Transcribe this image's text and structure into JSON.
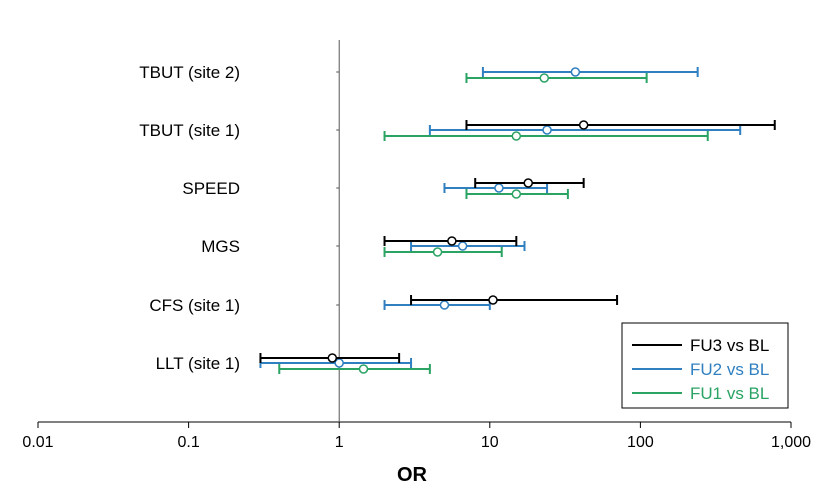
{
  "chart_data": {
    "type": "forest",
    "xlabel": "OR",
    "x_scale": "log",
    "xlim": [
      0.01,
      1000
    ],
    "x_ticks": [
      {
        "value": 0.01,
        "label": "0.01"
      },
      {
        "value": 0.1,
        "label": "0.1"
      },
      {
        "value": 1,
        "label": "1"
      },
      {
        "value": 10,
        "label": "10"
      },
      {
        "value": 100,
        "label": "100"
      },
      {
        "value": 1000,
        "label": "1,000"
      }
    ],
    "reference_line": 1,
    "grid": false,
    "legend_position": "bottom-right",
    "categories": [
      "TBUT (site 2)",
      "TBUT (site 1)",
      "SPEED",
      "MGS",
      "CFS (site 1)",
      "LLT (site 1)"
    ],
    "series": [
      {
        "name": "FU3 vs BL",
        "color": "#000000",
        "points": [
          null,
          {
            "or": 42,
            "low": 7,
            "high": 780
          },
          {
            "or": 18,
            "low": 8,
            "high": 42
          },
          {
            "or": 5.6,
            "low": 2,
            "high": 15
          },
          {
            "or": 10.5,
            "low": 3,
            "high": 70
          },
          {
            "or": 0.9,
            "low": 0.3,
            "high": 2.5
          }
        ]
      },
      {
        "name": "FU2 vs BL",
        "color": "#2f7fc1",
        "points": [
          {
            "or": 37,
            "low": 9,
            "high": 240
          },
          {
            "or": 24,
            "low": 4,
            "high": 460
          },
          {
            "or": 11.5,
            "low": 5,
            "high": 24
          },
          {
            "or": 6.6,
            "low": 3,
            "high": 17
          },
          {
            "or": 5,
            "low": 2,
            "high": 10
          },
          {
            "or": 1,
            "low": 0.3,
            "high": 3
          }
        ]
      },
      {
        "name": "FU1 vs BL",
        "color": "#2aa363",
        "points": [
          {
            "or": 23,
            "low": 7,
            "high": 110
          },
          {
            "or": 15,
            "low": 2,
            "high": 280
          },
          {
            "or": 15,
            "low": 7,
            "high": 33
          },
          {
            "or": 4.5,
            "low": 2,
            "high": 12
          },
          null,
          {
            "or": 1.45,
            "low": 0.4,
            "high": 4
          }
        ]
      }
    ]
  }
}
